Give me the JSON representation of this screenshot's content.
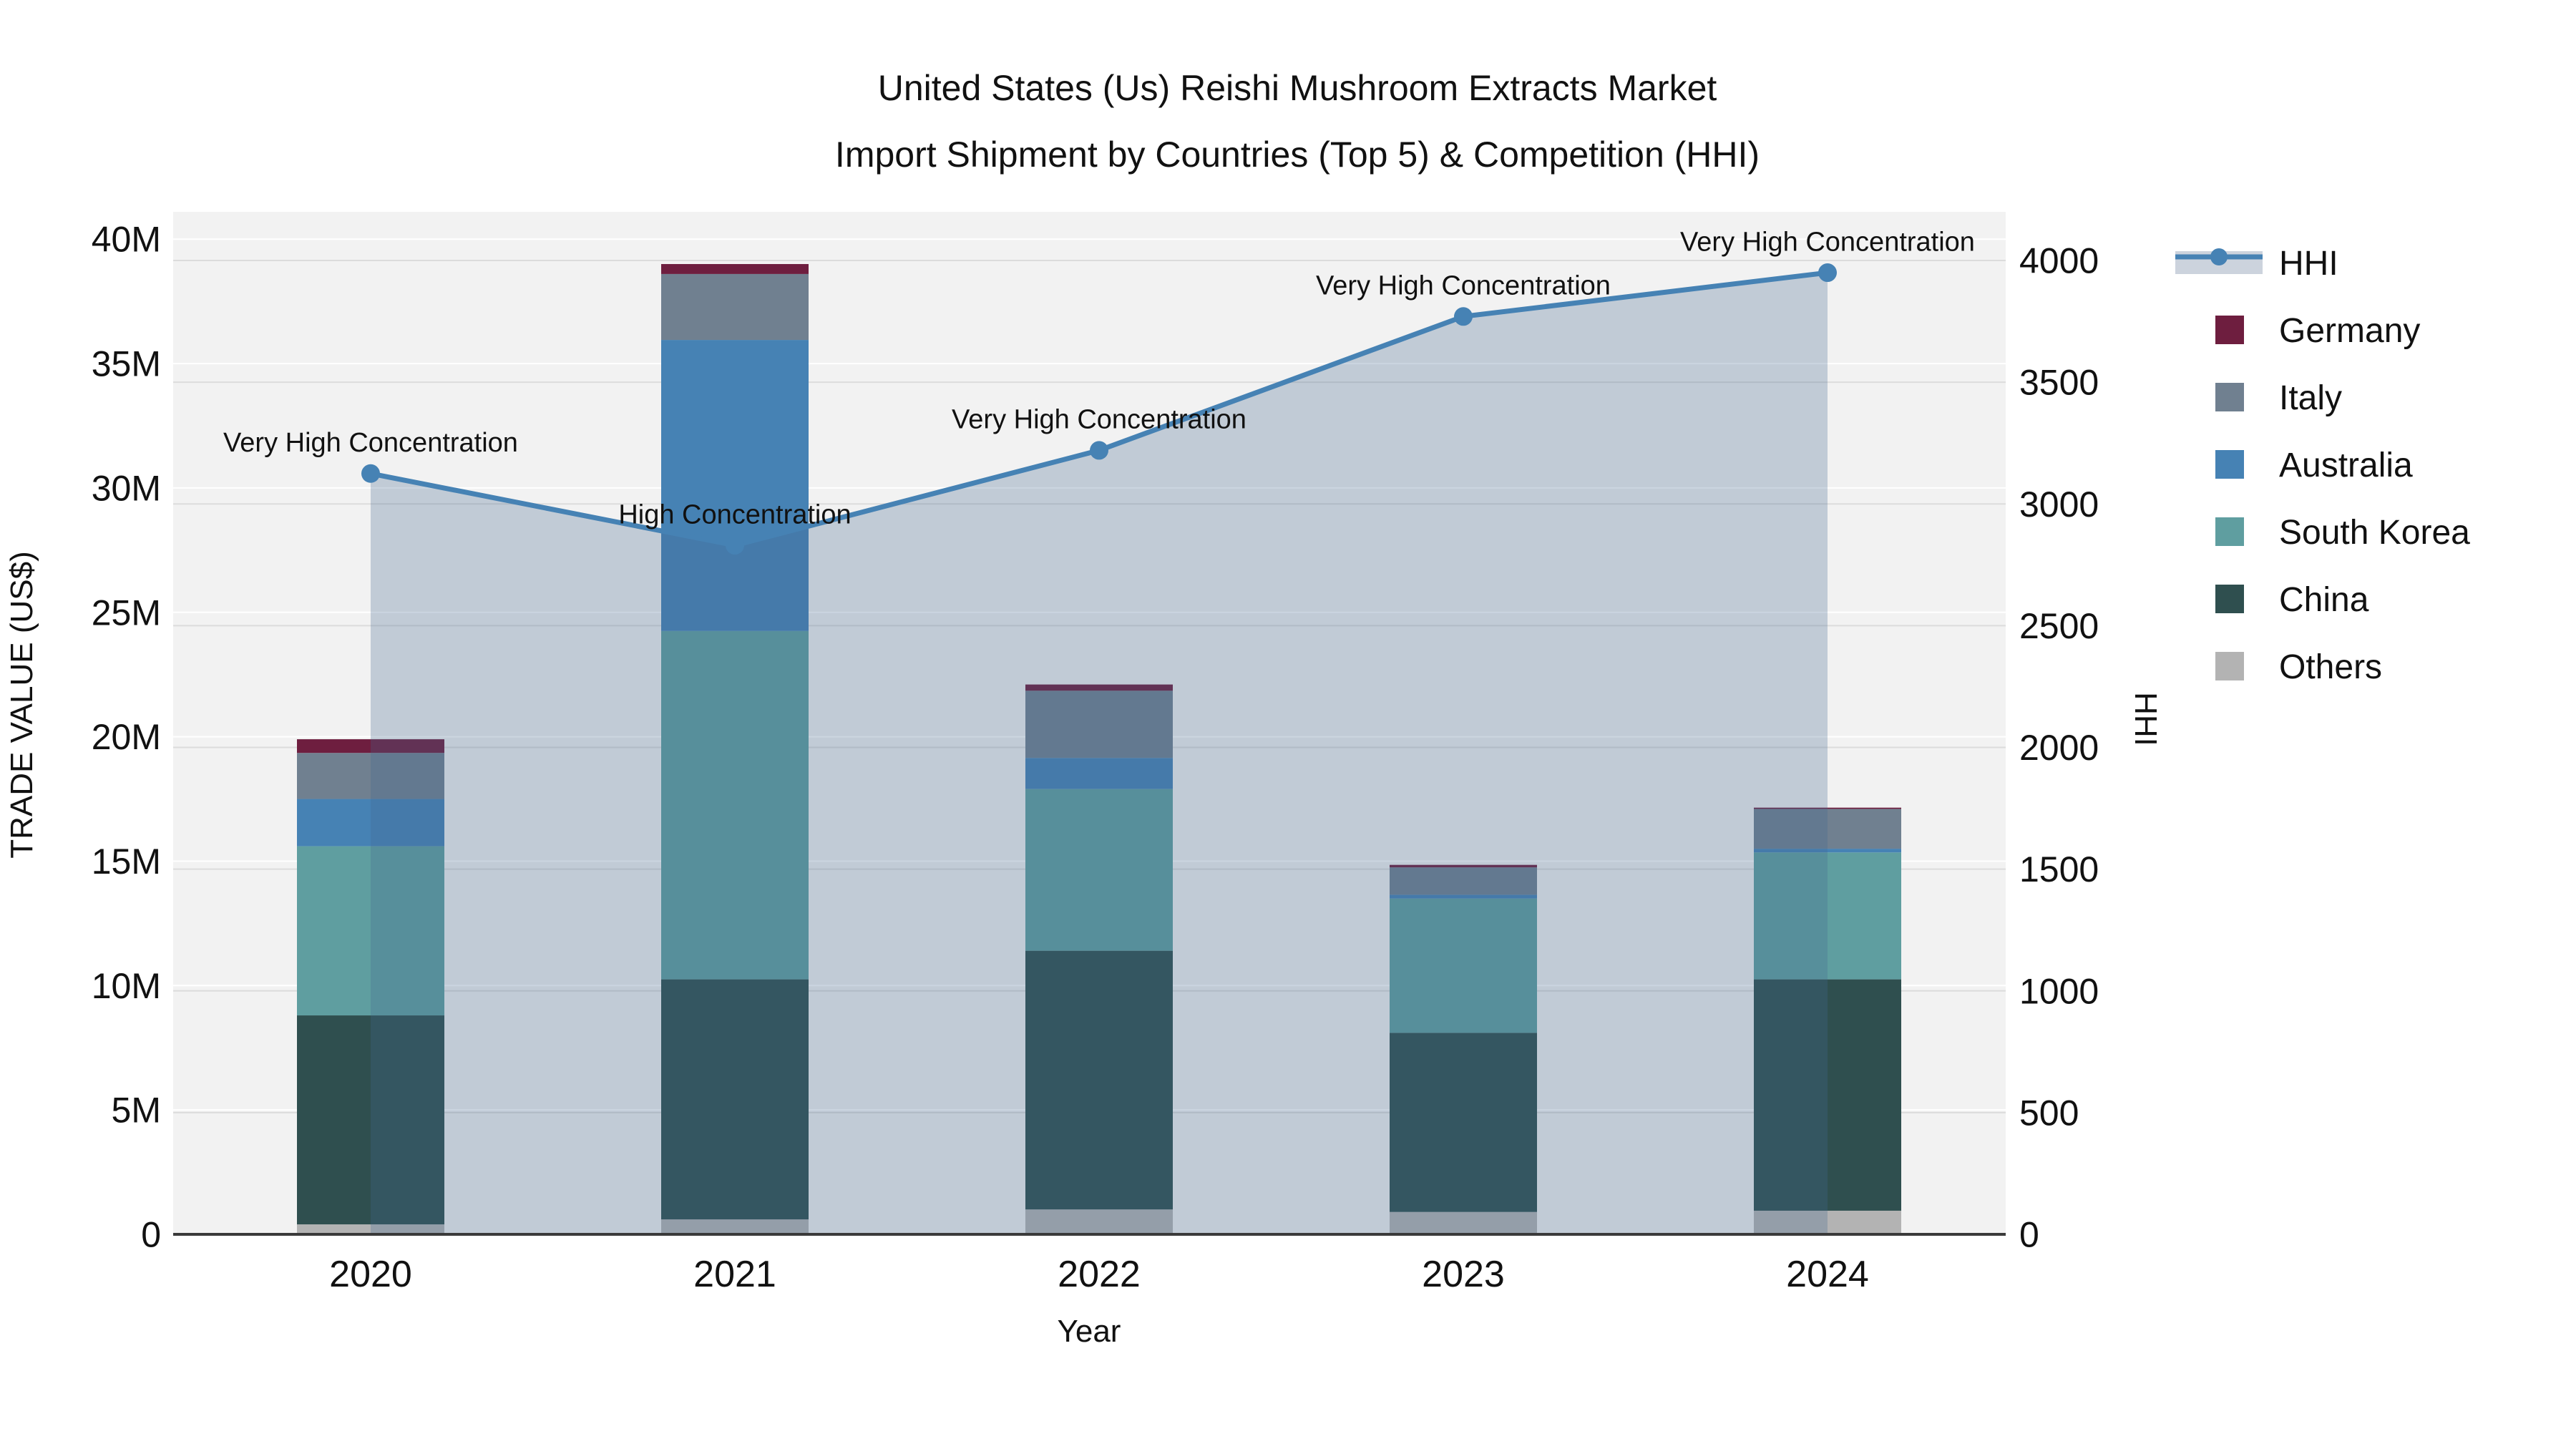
{
  "title": {
    "line1": "United States (Us) Reishi Mushroom Extracts Market",
    "line2": "Import Shipment by Countries (Top 5) & Competition (HHI)"
  },
  "axes": {
    "x": {
      "title": "Year"
    },
    "y_left": {
      "title": "TRADE VALUE (US$)",
      "range_max_millions": 41.1,
      "ticks": [
        {
          "v": 0,
          "label": "0"
        },
        {
          "v": 5,
          "label": "5M"
        },
        {
          "v": 10,
          "label": "10M"
        },
        {
          "v": 15,
          "label": "15M"
        },
        {
          "v": 20,
          "label": "20M"
        },
        {
          "v": 25,
          "label": "25M"
        },
        {
          "v": 30,
          "label": "30M"
        },
        {
          "v": 35,
          "label": "35M"
        },
        {
          "v": 40,
          "label": "40M"
        }
      ]
    },
    "y_right": {
      "title": "HHI",
      "range_max": 4200,
      "ticks": [
        {
          "v": 0,
          "label": "0"
        },
        {
          "v": 500,
          "label": "500"
        },
        {
          "v": 1000,
          "label": "1000"
        },
        {
          "v": 1500,
          "label": "1500"
        },
        {
          "v": 2000,
          "label": "2000"
        },
        {
          "v": 2500,
          "label": "2500"
        },
        {
          "v": 3000,
          "label": "3000"
        },
        {
          "v": 3500,
          "label": "3500"
        },
        {
          "v": 4000,
          "label": "4000"
        }
      ]
    }
  },
  "chart_data": {
    "type": "bar",
    "subtype": "stacked bars (trade value, US$ millions) + HHI line on secondary axis",
    "categories": [
      "2020",
      "2021",
      "2022",
      "2023",
      "2024"
    ],
    "series": [
      {
        "name": "Others",
        "color": "#b3b3b3",
        "values": [
          0.4,
          0.6,
          1.0,
          0.9,
          0.95
        ]
      },
      {
        "name": "China",
        "color": "#2f4f4f",
        "values": [
          8.4,
          9.65,
          10.4,
          7.2,
          9.3
        ]
      },
      {
        "name": "South Korea",
        "color": "#5f9ea0",
        "values": [
          6.8,
          14.0,
          6.5,
          5.4,
          5.1
        ]
      },
      {
        "name": "Australia",
        "color": "#4682b4",
        "values": [
          1.9,
          11.7,
          1.25,
          0.15,
          0.15
        ]
      },
      {
        "name": "Italy",
        "color": "#708090",
        "values": [
          1.85,
          2.65,
          2.7,
          1.1,
          1.6
        ]
      },
      {
        "name": "Germany",
        "color": "#6e1e3f",
        "values": [
          0.55,
          0.4,
          0.25,
          0.1,
          0.05
        ]
      }
    ],
    "bar_totals_millions": [
      19.9,
      39.0,
      22.1,
      14.85,
      17.15
    ],
    "line_series": {
      "name": "HHI",
      "color": "#4682b4",
      "fill_color": "rgba(70,105,145,0.28)",
      "values": [
        3125,
        2830,
        3220,
        3770,
        3950
      ]
    },
    "point_annotations": [
      "Very High Concentration",
      "High Concentration",
      "Very High Concentration",
      "Very High Concentration",
      "Very High Concentration"
    ],
    "xlabel": "Year",
    "ylabel": "TRADE VALUE (US$)",
    "ylabel_right": "HHI",
    "ylim_left": [
      0,
      41.1
    ],
    "ylim_right": [
      0,
      4200
    ],
    "grid": true,
    "legend_position": "right"
  },
  "legend": {
    "items": [
      {
        "label": "HHI",
        "color": "#4682b4",
        "type": "line"
      },
      {
        "label": "Germany",
        "color": "#6e1e3f",
        "type": "swatch"
      },
      {
        "label": "Italy",
        "color": "#708090",
        "type": "swatch"
      },
      {
        "label": "Australia",
        "color": "#4682b4",
        "type": "swatch"
      },
      {
        "label": "South Korea",
        "color": "#5f9ea0",
        "type": "swatch"
      },
      {
        "label": "China",
        "color": "#2f4f4f",
        "type": "swatch"
      },
      {
        "label": "Others",
        "color": "#b3b3b3",
        "type": "swatch"
      }
    ]
  },
  "colors": {
    "plot_bg": "#f2f2f2",
    "grid_left": "#ffffff",
    "grid_right": "#dcdcdc",
    "axis_line": "#3a3a3a"
  }
}
